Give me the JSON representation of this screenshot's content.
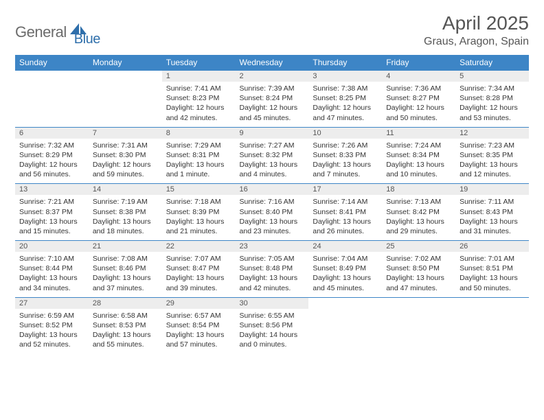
{
  "logo": {
    "part1": "General",
    "part2": "Blue"
  },
  "title": "April 2025",
  "location": "Graus, Aragon, Spain",
  "colors": {
    "header_bg": "#3d85c6",
    "header_fg": "#ffffff",
    "daynum_bg": "#ededed",
    "border": "#3d85c6",
    "logo_gray": "#6b6b6b",
    "logo_blue": "#2f6fab"
  },
  "weekdays": [
    "Sunday",
    "Monday",
    "Tuesday",
    "Wednesday",
    "Thursday",
    "Friday",
    "Saturday"
  ],
  "weeks": [
    {
      "nums": [
        "",
        "",
        "1",
        "2",
        "3",
        "4",
        "5"
      ],
      "cells": [
        "",
        "",
        "Sunrise: 7:41 AM\nSunset: 8:23 PM\nDaylight: 12 hours and 42 minutes.",
        "Sunrise: 7:39 AM\nSunset: 8:24 PM\nDaylight: 12 hours and 45 minutes.",
        "Sunrise: 7:38 AM\nSunset: 8:25 PM\nDaylight: 12 hours and 47 minutes.",
        "Sunrise: 7:36 AM\nSunset: 8:27 PM\nDaylight: 12 hours and 50 minutes.",
        "Sunrise: 7:34 AM\nSunset: 8:28 PM\nDaylight: 12 hours and 53 minutes."
      ]
    },
    {
      "nums": [
        "6",
        "7",
        "8",
        "9",
        "10",
        "11",
        "12"
      ],
      "cells": [
        "Sunrise: 7:32 AM\nSunset: 8:29 PM\nDaylight: 12 hours and 56 minutes.",
        "Sunrise: 7:31 AM\nSunset: 8:30 PM\nDaylight: 12 hours and 59 minutes.",
        "Sunrise: 7:29 AM\nSunset: 8:31 PM\nDaylight: 13 hours and 1 minute.",
        "Sunrise: 7:27 AM\nSunset: 8:32 PM\nDaylight: 13 hours and 4 minutes.",
        "Sunrise: 7:26 AM\nSunset: 8:33 PM\nDaylight: 13 hours and 7 minutes.",
        "Sunrise: 7:24 AM\nSunset: 8:34 PM\nDaylight: 13 hours and 10 minutes.",
        "Sunrise: 7:23 AM\nSunset: 8:35 PM\nDaylight: 13 hours and 12 minutes."
      ]
    },
    {
      "nums": [
        "13",
        "14",
        "15",
        "16",
        "17",
        "18",
        "19"
      ],
      "cells": [
        "Sunrise: 7:21 AM\nSunset: 8:37 PM\nDaylight: 13 hours and 15 minutes.",
        "Sunrise: 7:19 AM\nSunset: 8:38 PM\nDaylight: 13 hours and 18 minutes.",
        "Sunrise: 7:18 AM\nSunset: 8:39 PM\nDaylight: 13 hours and 21 minutes.",
        "Sunrise: 7:16 AM\nSunset: 8:40 PM\nDaylight: 13 hours and 23 minutes.",
        "Sunrise: 7:14 AM\nSunset: 8:41 PM\nDaylight: 13 hours and 26 minutes.",
        "Sunrise: 7:13 AM\nSunset: 8:42 PM\nDaylight: 13 hours and 29 minutes.",
        "Sunrise: 7:11 AM\nSunset: 8:43 PM\nDaylight: 13 hours and 31 minutes."
      ]
    },
    {
      "nums": [
        "20",
        "21",
        "22",
        "23",
        "24",
        "25",
        "26"
      ],
      "cells": [
        "Sunrise: 7:10 AM\nSunset: 8:44 PM\nDaylight: 13 hours and 34 minutes.",
        "Sunrise: 7:08 AM\nSunset: 8:46 PM\nDaylight: 13 hours and 37 minutes.",
        "Sunrise: 7:07 AM\nSunset: 8:47 PM\nDaylight: 13 hours and 39 minutes.",
        "Sunrise: 7:05 AM\nSunset: 8:48 PM\nDaylight: 13 hours and 42 minutes.",
        "Sunrise: 7:04 AM\nSunset: 8:49 PM\nDaylight: 13 hours and 45 minutes.",
        "Sunrise: 7:02 AM\nSunset: 8:50 PM\nDaylight: 13 hours and 47 minutes.",
        "Sunrise: 7:01 AM\nSunset: 8:51 PM\nDaylight: 13 hours and 50 minutes."
      ]
    },
    {
      "nums": [
        "27",
        "28",
        "29",
        "30",
        "",
        "",
        ""
      ],
      "cells": [
        "Sunrise: 6:59 AM\nSunset: 8:52 PM\nDaylight: 13 hours and 52 minutes.",
        "Sunrise: 6:58 AM\nSunset: 8:53 PM\nDaylight: 13 hours and 55 minutes.",
        "Sunrise: 6:57 AM\nSunset: 8:54 PM\nDaylight: 13 hours and 57 minutes.",
        "Sunrise: 6:55 AM\nSunset: 8:56 PM\nDaylight: 14 hours and 0 minutes.",
        "",
        "",
        ""
      ]
    }
  ]
}
